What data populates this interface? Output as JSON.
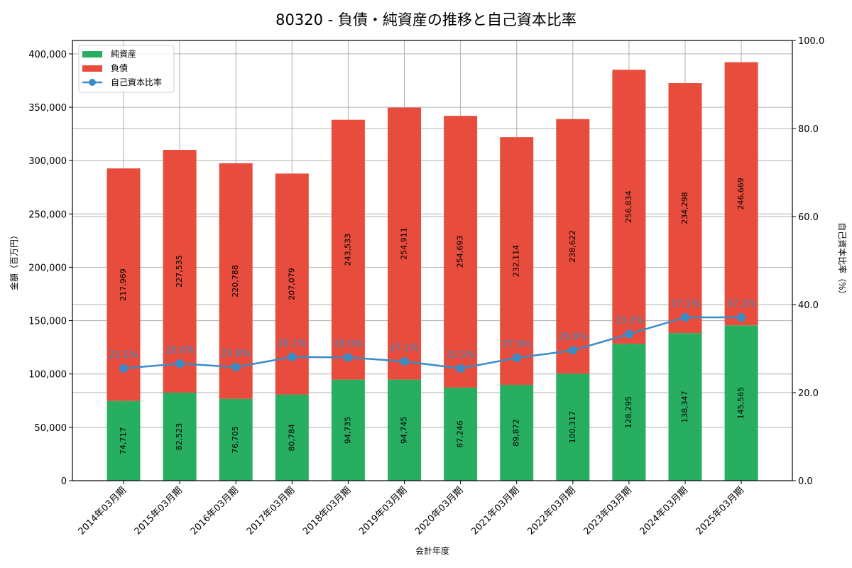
{
  "title": "80320 - 負債・純資産の推移と自己資本比率",
  "colors": {
    "net_assets": "#27ae60",
    "liabilities": "#e74c3c",
    "ratio": "#3a8cc6",
    "grid": "#b0b0b0"
  },
  "legend": {
    "items": [
      {
        "label": "純資産",
        "type": "bar",
        "color": "#27ae60"
      },
      {
        "label": "負債",
        "type": "bar",
        "color": "#e74c3c"
      },
      {
        "label": "自己資本比率",
        "type": "line-marker",
        "color": "#3a8cc6"
      }
    ]
  },
  "axes": {
    "xlabel": "会計年度",
    "ylabel_left": "金額（百万円）",
    "ylabel_right": "自己資本比率（%）",
    "left_ticks": [
      "0",
      "50,000",
      "100,000",
      "150,000",
      "200,000",
      "250,000",
      "300,000",
      "350,000",
      "400,000"
    ],
    "right_ticks": [
      "0.0",
      "20.0",
      "40.0",
      "60.0",
      "80.0",
      "100.0"
    ]
  },
  "chart_data": {
    "type": "bar",
    "stacked": true,
    "title": "80320 - 負債・純資産の推移と自己資本比率",
    "xlabel": "会計年度",
    "ylabel": "金額（百万円）",
    "ylabel_right": "自己資本比率（%）",
    "ylim": [
      0,
      412600
    ],
    "ylim_right": [
      0,
      100
    ],
    "grid": true,
    "legend_position": "upper left",
    "categories": [
      "2014年03月期",
      "2015年03月期",
      "2016年03月期",
      "2017年03月期",
      "2018年03月期",
      "2019年03月期",
      "2020年03月期",
      "2021年03月期",
      "2022年03月期",
      "2023年03月期",
      "2024年03月期",
      "2025年03月期"
    ],
    "series": [
      {
        "name": "純資産",
        "type": "bar",
        "axis": "left",
        "color": "#27ae60",
        "values": [
          74717,
          82523,
          76705,
          80784,
          94735,
          94745,
          87246,
          89872,
          100317,
          128295,
          138347,
          145565
        ],
        "labels": [
          "74,717",
          "82,523",
          "76,705",
          "80,784",
          "94,735",
          "94,745",
          "87,246",
          "89,872",
          "100,317",
          "128,295",
          "138,347",
          "145,565"
        ]
      },
      {
        "name": "負債",
        "type": "bar",
        "axis": "left",
        "color": "#e74c3c",
        "values": [
          217969,
          227535,
          220788,
          207079,
          243533,
          254911,
          254693,
          232114,
          238622,
          256834,
          234298,
          246669
        ],
        "labels": [
          "217,969",
          "227,535",
          "220,788",
          "207,079",
          "243,533",
          "254,911",
          "254,693",
          "232,114",
          "238,622",
          "256,834",
          "234,298",
          "246,669"
        ]
      },
      {
        "name": "自己資本比率",
        "type": "line",
        "axis": "right",
        "color": "#3a8cc6",
        "values": [
          25.5,
          26.6,
          25.8,
          28.1,
          28.0,
          27.1,
          25.5,
          27.9,
          29.6,
          33.3,
          37.1,
          37.1
        ],
        "labels": [
          "25.5%",
          "26.6%",
          "25.8%",
          "28.1%",
          "28.0%",
          "27.1%",
          "25.5%",
          "27.9%",
          "29.6%",
          "33.3%",
          "37.1%",
          "37.1%"
        ]
      }
    ]
  }
}
